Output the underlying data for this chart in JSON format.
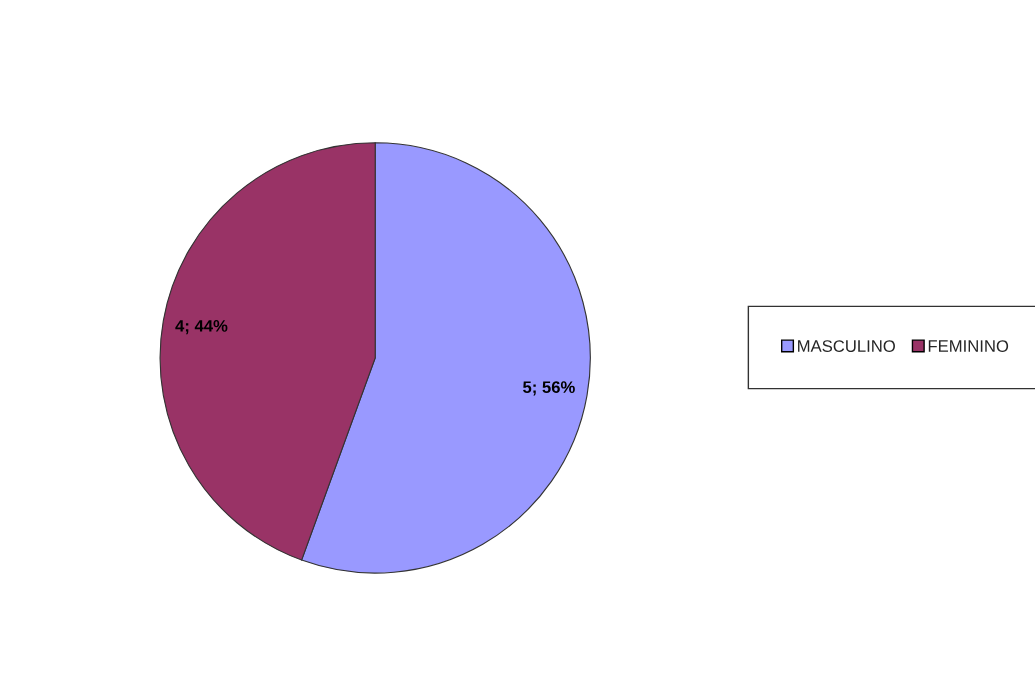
{
  "chart_data": {
    "type": "pie",
    "categories": [
      "MASCULINO",
      "FEMININO"
    ],
    "values": [
      5,
      4
    ],
    "colors": [
      "#9999ff",
      "#993366"
    ],
    "value_labels": [
      "5; 56%",
      "4; 44%"
    ],
    "legend": "right"
  }
}
